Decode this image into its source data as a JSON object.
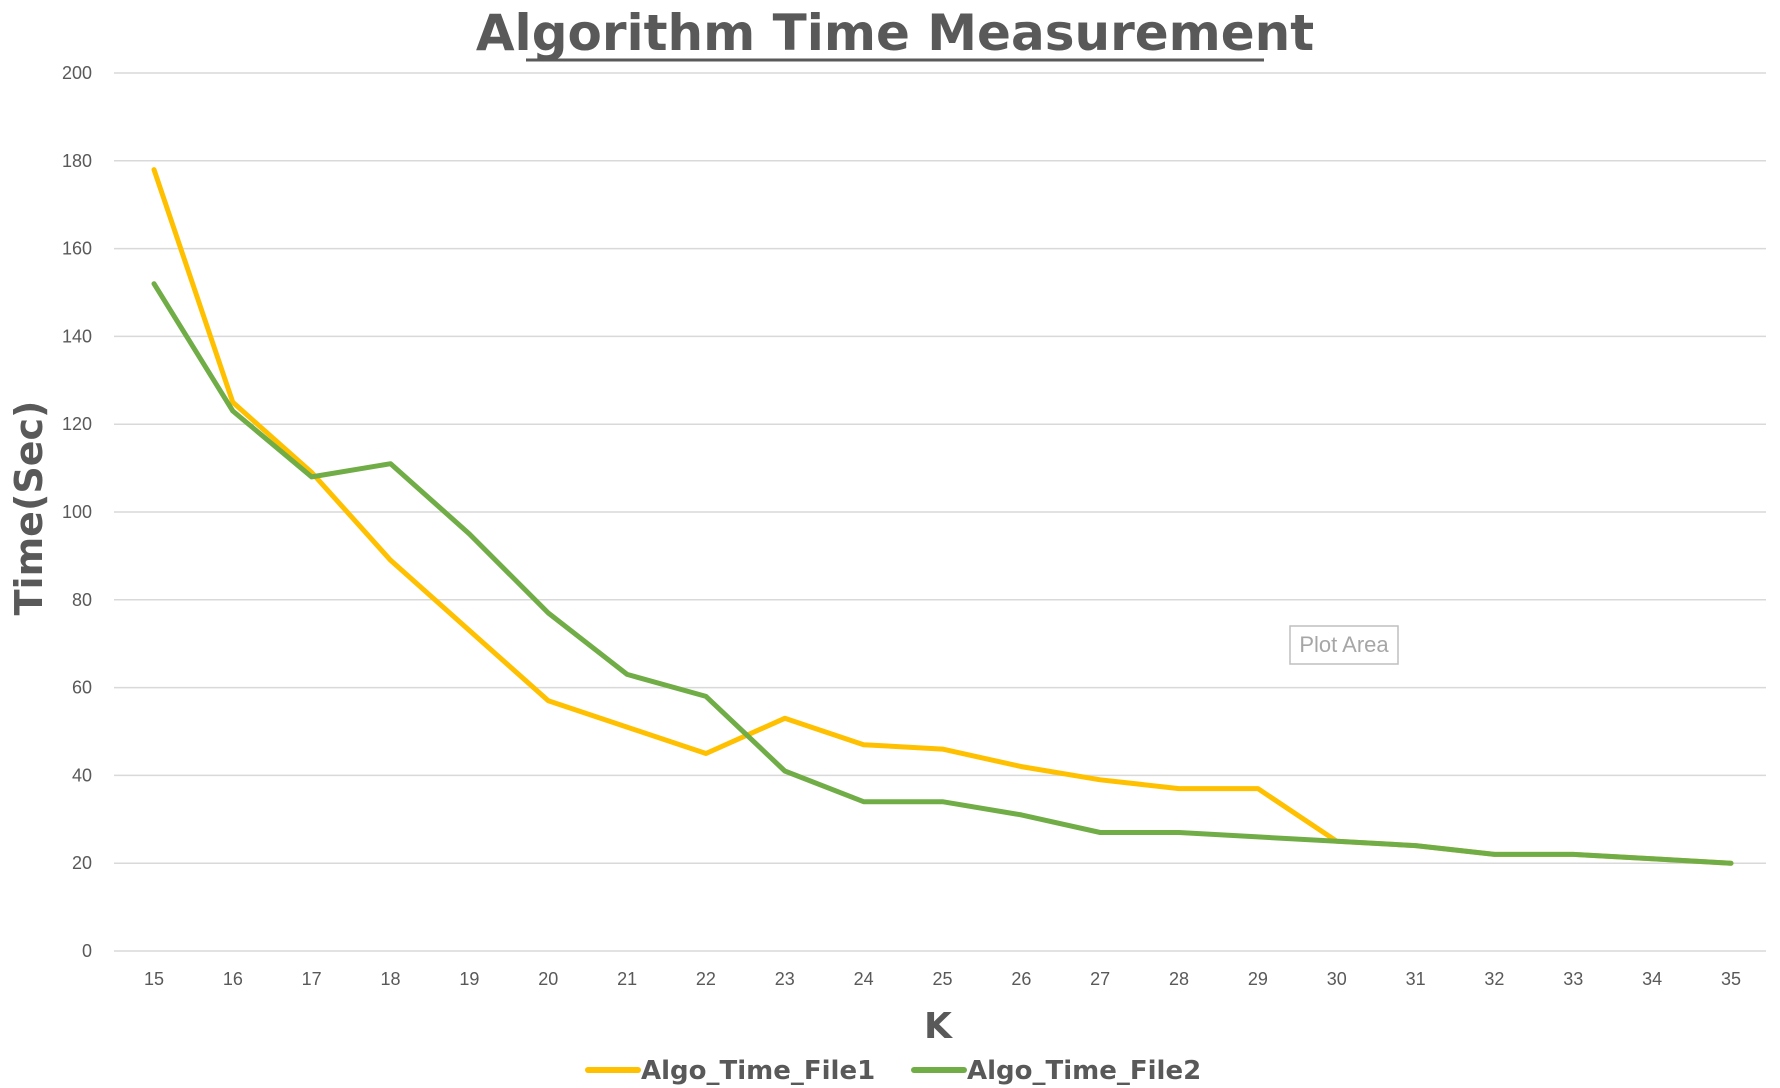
{
  "chart_data": {
    "type": "line",
    "title": "Algorithm Time Measurement",
    "xlabel": "K",
    "ylabel": "Time(Sec)",
    "ylim": [
      0,
      200
    ],
    "yticks": [
      "0",
      "20",
      "40",
      "60",
      "80",
      "100",
      "120",
      "140",
      "160",
      "180",
      "200"
    ],
    "categories": [
      "15",
      "16",
      "17",
      "18",
      "19",
      "20",
      "21",
      "22",
      "23",
      "24",
      "25",
      "26",
      "27",
      "28",
      "29",
      "30",
      "31",
      "32",
      "33",
      "34",
      "35"
    ],
    "grid": true,
    "legend_position": "bottom",
    "series": [
      {
        "name": "Algo_Time_File1",
        "color": "#FFC000",
        "values": [
          178,
          125,
          109,
          89,
          73,
          57,
          51,
          45,
          53,
          47,
          46,
          42,
          39,
          37,
          37,
          25,
          24,
          22,
          22,
          21,
          20
        ]
      },
      {
        "name": "Algo_Time_File2",
        "color": "#70AD47",
        "values": [
          152,
          123,
          108,
          111,
          95,
          77,
          63,
          58,
          41,
          34,
          34,
          31,
          27,
          27,
          26,
          25,
          24,
          22,
          22,
          21,
          20
        ]
      }
    ],
    "annotation": "Plot Area"
  }
}
